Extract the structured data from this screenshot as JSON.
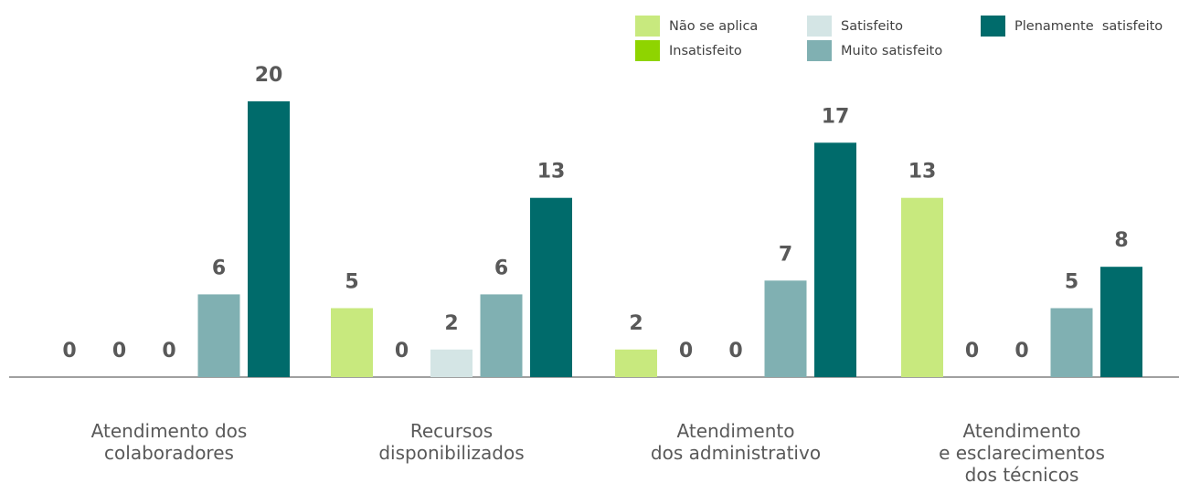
{
  "chart_data": {
    "type": "bar",
    "categories": [
      [
        "Atendimento dos",
        "colaboradores"
      ],
      [
        "Recursos",
        "disponibilizados"
      ],
      [
        "Atendimento",
        "dos administrativo"
      ],
      [
        "Atendimento",
        "e esclarecimentos",
        "dos técnicos"
      ]
    ],
    "series": [
      {
        "name": "Não se aplica",
        "color": "#c8e97e",
        "values": [
          0,
          5,
          2,
          13
        ]
      },
      {
        "name": "Insatisfeito",
        "color": "#8fd400",
        "values": [
          0,
          0,
          0,
          0
        ]
      },
      {
        "name": "Satisfeito",
        "color": "#d4e5e5",
        "values": [
          0,
          2,
          0,
          0
        ]
      },
      {
        "name": "Muito satisfeito",
        "color": "#80b0b2",
        "values": [
          6,
          6,
          7,
          5
        ]
      },
      {
        "name": "Plenamente  satisfeito",
        "color": "#006b6b",
        "values": [
          20,
          13,
          17,
          8
        ]
      }
    ]
  }
}
